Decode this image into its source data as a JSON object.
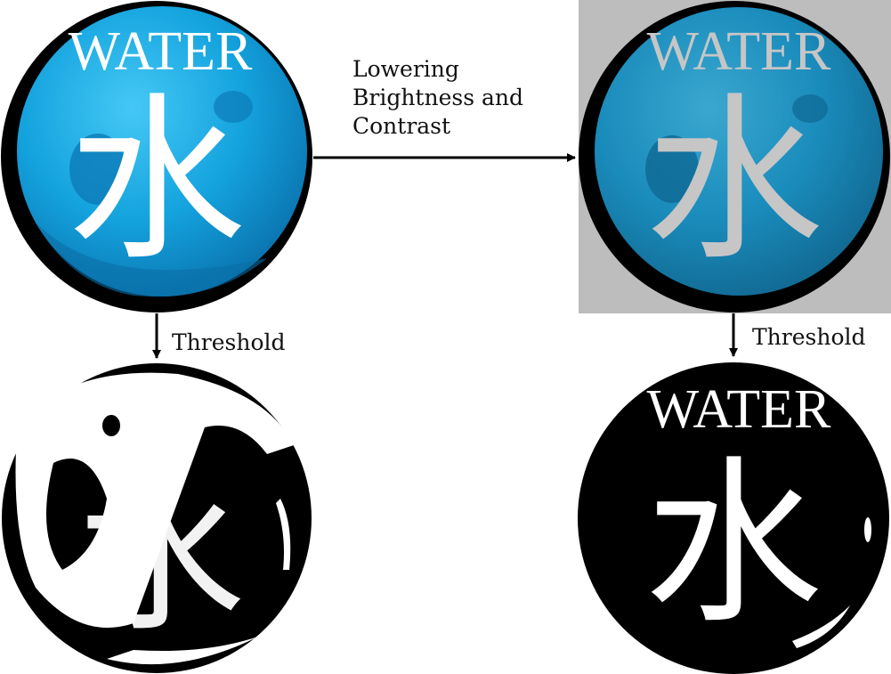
{
  "orb": {
    "word": "WATER",
    "glyph": "水"
  },
  "steps": {
    "brightness_line1": "Lowering",
    "brightness_line2": "Brightness and",
    "brightness_line3": "Contrast",
    "threshold_left": "Threshold",
    "threshold_right": "Threshold"
  },
  "colors": {
    "orb_blue_light": "#2bb8ef",
    "orb_blue": "#12a0dc",
    "orb_blue_dark": "#0a6fa8",
    "dimmed_background": "#bdbdbd",
    "dimmed_text": "#c6c6c6",
    "black": "#000000",
    "white": "#ffffff"
  }
}
